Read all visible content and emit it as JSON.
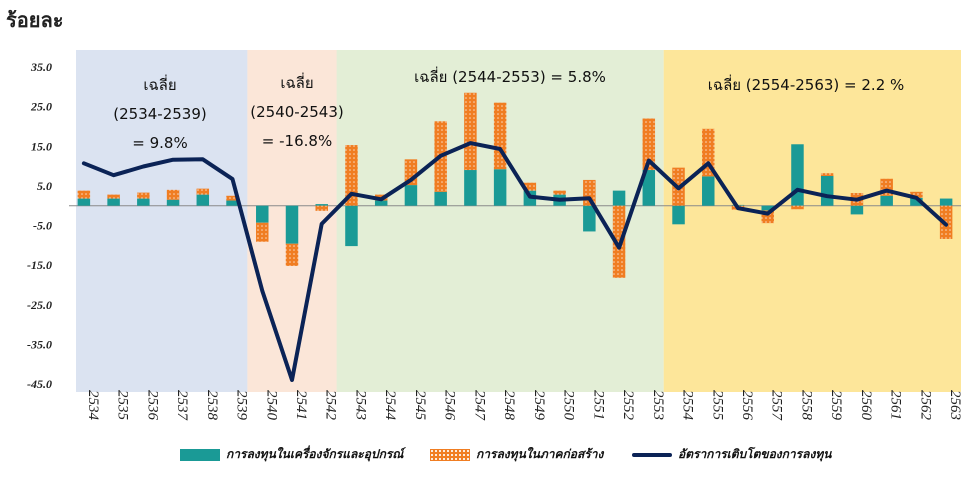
{
  "unit_label": "ร้อยละ",
  "chart_data": {
    "type": "bar",
    "x": [
      "2534",
      "2535",
      "2536",
      "2537",
      "2538",
      "2539",
      "2540",
      "2541",
      "2542",
      "2543",
      "2544",
      "2545",
      "2546",
      "2547",
      "2548",
      "2549",
      "2550",
      "2551",
      "2552",
      "2553",
      "2554",
      "2555",
      "2556",
      "2557",
      "2558",
      "2559",
      "2560",
      "2561",
      "2562",
      "2563"
    ],
    "ylim": [
      -45,
      35
    ],
    "yticks": [
      "35.0",
      "25.0",
      "15.0",
      "5.0",
      "-5.0",
      "-15.0",
      "-25.0",
      "-35.0",
      "-45.0"
    ],
    "ytick_values": [
      35,
      25,
      15,
      5,
      -5,
      -15,
      -25,
      -35,
      -45
    ],
    "series": [
      {
        "name": "การลงทุนในเครื่องจักรและอุปกรณ์",
        "kind": "bar",
        "color": "#1a9a96",
        "values": [
          1.8,
          1.8,
          1.8,
          1.5,
          2.8,
          1.3,
          -4.3,
          -9.6,
          0.4,
          -10.2,
          1.3,
          5.2,
          3.5,
          9.0,
          9.2,
          3.8,
          2.8,
          -6.5,
          3.8,
          9.0,
          -4.7,
          7.4,
          0.2,
          -1.2,
          15.5,
          7.5,
          -2.2,
          2.5,
          2.0,
          1.8
        ]
      },
      {
        "name": "การลงทุนในภาคก่อสร้าง",
        "kind": "bar",
        "color": "#f07d22",
        "values": [
          2.0,
          1.0,
          1.5,
          2.5,
          1.5,
          1.2,
          -4.8,
          -5.6,
          -1.3,
          15.3,
          1.5,
          6.5,
          17.8,
          19.5,
          16.8,
          2.0,
          1.0,
          6.5,
          -18.2,
          13.0,
          9.6,
          12.0,
          -1.0,
          -3.2,
          -0.9,
          0.7,
          3.2,
          4.3,
          1.5,
          -8.4
        ]
      },
      {
        "name": "อัตราการเติบโตของการลงทุน",
        "kind": "line",
        "color": "#0b2356",
        "values": [
          10.7,
          7.7,
          9.9,
          11.6,
          11.7,
          6.7,
          -21.5,
          -44.0,
          -4.6,
          3.0,
          1.6,
          6.5,
          12.6,
          15.8,
          14.3,
          2.3,
          1.5,
          1.9,
          -10.6,
          11.4,
          4.4,
          10.7,
          -0.6,
          -2.0,
          4.0,
          2.4,
          1.5,
          3.8,
          2.0,
          -4.8
        ]
      }
    ],
    "periods": [
      {
        "from": 0,
        "to": 5,
        "color": "#dbe3f1",
        "lines": [
          "เฉลี่ย",
          "(2534-2539)",
          "= 9.8%"
        ]
      },
      {
        "from": 6,
        "to": 9,
        "color": "#fbe6d8",
        "lines": [
          "เฉลี่ย",
          "(2540-2543)",
          "=  -16.8%"
        ]
      },
      {
        "from": 9,
        "to": 19,
        "color": "#e3eed6",
        "lines": [
          "เฉลี่ย (2544-2553) = 5.8%"
        ]
      },
      {
        "from": 20,
        "to": 29,
        "color": "#fde69a",
        "lines": [
          "เฉลี่ย (2554-2563) = 2.2 %"
        ]
      }
    ]
  },
  "legend": [
    {
      "label": "การลงทุนในเครื่องจักรและอุปกรณ์",
      "type": "bar",
      "color": "#1a9a96"
    },
    {
      "label": "การลงทุนในภาคก่อสร้าง",
      "type": "dotted-bar",
      "color": "#f07d22"
    },
    {
      "label": "อัตราการเติบโตของการลงทุน",
      "type": "line",
      "color": "#0b2356"
    }
  ]
}
